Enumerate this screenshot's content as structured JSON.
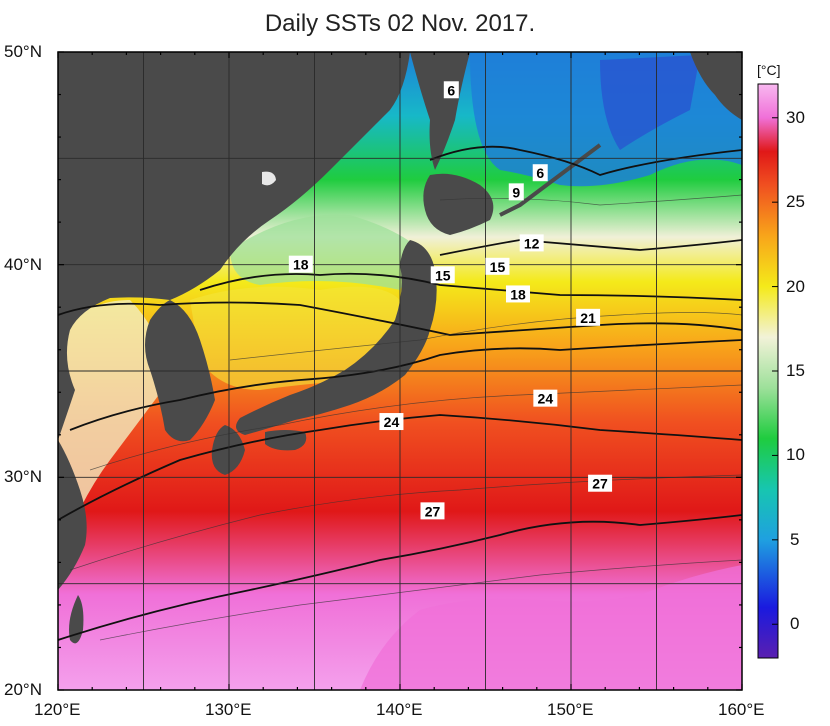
{
  "title": "Daily SSTs 02 Nov. 2017.",
  "map": {
    "lon_range": [
      120,
      160
    ],
    "lat_range": [
      20,
      50
    ],
    "lon_ticks": [
      {
        "value": 120,
        "label": "120°E"
      },
      {
        "value": 130,
        "label": "130°E"
      },
      {
        "value": 140,
        "label": "140°E"
      },
      {
        "value": 150,
        "label": "150°E"
      },
      {
        "value": 160,
        "label": "160°E"
      }
    ],
    "lat_ticks": [
      {
        "value": 20,
        "label": "20°N"
      },
      {
        "value": 30,
        "label": "30°N"
      },
      {
        "value": 40,
        "label": "40°N"
      },
      {
        "value": 50,
        "label": "50°N"
      }
    ],
    "contour_labels": [
      {
        "text": "6",
        "lon": 143.0,
        "lat": 48.2
      },
      {
        "text": "6",
        "lon": 148.2,
        "lat": 44.3
      },
      {
        "text": "9",
        "lon": 146.8,
        "lat": 43.4
      },
      {
        "text": "12",
        "lon": 147.7,
        "lat": 41.0
      },
      {
        "text": "15",
        "lon": 142.5,
        "lat": 39.5
      },
      {
        "text": "15",
        "lon": 145.7,
        "lat": 39.9
      },
      {
        "text": "18",
        "lon": 134.2,
        "lat": 40.0
      },
      {
        "text": "18",
        "lon": 146.9,
        "lat": 38.6
      },
      {
        "text": "21",
        "lon": 151.0,
        "lat": 37.5
      },
      {
        "text": "24",
        "lon": 139.5,
        "lat": 32.6
      },
      {
        "text": "24",
        "lon": 148.5,
        "lat": 33.7
      },
      {
        "text": "27",
        "lon": 141.9,
        "lat": 28.4
      },
      {
        "text": "27",
        "lon": 151.7,
        "lat": 29.7
      }
    ],
    "colors": {
      "land": "#4a4a4a",
      "frame": "#000000",
      "grid": "#2a2a2a"
    }
  },
  "colorbar": {
    "unit": "[°C]",
    "range": [
      -2,
      32
    ],
    "ticks": [
      "0",
      "5",
      "10",
      "15",
      "20",
      "25",
      "30"
    ],
    "tick_values": [
      0,
      5,
      10,
      15,
      20,
      25,
      30
    ],
    "stops": [
      {
        "value": -2,
        "color": "#5a1fb0"
      },
      {
        "value": 1,
        "color": "#1a1adf"
      },
      {
        "value": 5,
        "color": "#1fa0e0"
      },
      {
        "value": 8,
        "color": "#17c6b0"
      },
      {
        "value": 11,
        "color": "#1fcc3f"
      },
      {
        "value": 14,
        "color": "#9de09a"
      },
      {
        "value": 17,
        "color": "#f2f2d8"
      },
      {
        "value": 20,
        "color": "#f4ea1a"
      },
      {
        "value": 23,
        "color": "#f8a51a"
      },
      {
        "value": 26,
        "color": "#f05020"
      },
      {
        "value": 28,
        "color": "#e01818"
      },
      {
        "value": 30,
        "color": "#f070d8"
      },
      {
        "value": 32,
        "color": "#f8b8f0"
      }
    ]
  }
}
